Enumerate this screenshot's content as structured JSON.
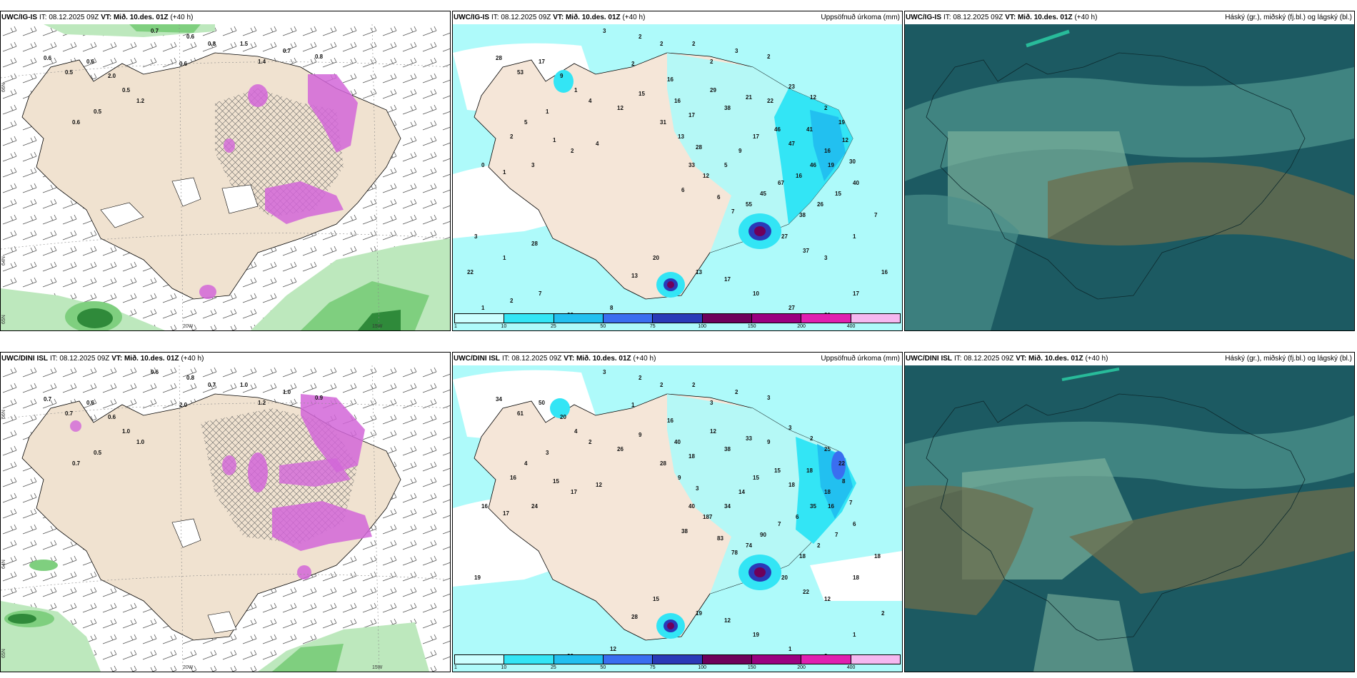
{
  "panels": [
    {
      "id": "ig-snow",
      "model": "UWC/IG-IS",
      "it_label": "IT:",
      "it_value": "08.12.2025 09Z",
      "vt_label": "VT:",
      "vt_value": "Mið. 10.des. 01Z",
      "lead": "(+40 h)",
      "right_title": "",
      "lat_labels": [
        "66N",
        "64N",
        "65N"
      ],
      "lon_labels": [
        "20W",
        "15W",
        "25W"
      ],
      "values": [
        "0.7",
        "0.6",
        "0.8",
        "1.5",
        "1.4",
        "0.7",
        "0.6",
        "0.8",
        "0.6",
        "0.5",
        "0.6",
        "2.0",
        "0.5",
        "1.2",
        "0.5",
        "0.6"
      ]
    },
    {
      "id": "ig-precip",
      "model": "UWC/IG-IS",
      "it_label": "IT:",
      "it_value": "08.12.2025 09Z",
      "vt_label": "VT:",
      "vt_value": "Mið. 10.des. 01Z",
      "lead": "(+40 h)",
      "right_title": "Uppsöfnuð úrkoma (mm)",
      "lat_labels": [
        "66N",
        "64N"
      ],
      "lon_labels": [],
      "values": [
        "3",
        "2",
        "2",
        "2",
        "2",
        "3",
        "2",
        "2",
        "28",
        "53",
        "17",
        "9",
        "1",
        "4",
        "1",
        "5",
        "2",
        "1",
        "2",
        "4",
        "0",
        "1",
        "3",
        "3",
        "12",
        "15",
        "16",
        "16",
        "17",
        "31",
        "13",
        "28",
        "29",
        "38",
        "21",
        "22",
        "23",
        "12",
        "2",
        "19",
        "12",
        "16",
        "46",
        "16",
        "67",
        "45",
        "55",
        "7",
        "6",
        "12",
        "33",
        "6",
        "5",
        "9",
        "17",
        "46",
        "47",
        "41",
        "19",
        "30",
        "40",
        "15",
        "26",
        "38",
        "27",
        "37",
        "3",
        "1",
        "7",
        "16",
        "17",
        "31",
        "27",
        "10",
        "17",
        "13",
        "20",
        "13",
        "8",
        "22",
        "7",
        "2",
        "1",
        "22",
        "1",
        "28"
      ],
      "colorbar_labels": [
        "1",
        "10",
        "25",
        "50",
        "75",
        "100",
        "150",
        "200",
        "400"
      ]
    },
    {
      "id": "ig-cloud",
      "model": "UWC/IG-IS",
      "it_label": "IT:",
      "it_value": "08.12.2025 09Z",
      "vt_label": "VT:",
      "vt_value": "Mið. 10.des. 01Z",
      "lead": "(+40 h)",
      "right_title": "Háský (gr.), miðský (fj.bl.) og lágský (bl.)",
      "values": []
    },
    {
      "id": "dini-snow",
      "model": "UWC/DINI ISL",
      "it_label": "IT:",
      "it_value": "08.12.2025 09Z",
      "vt_label": "VT:",
      "vt_value": "Mið. 10.des. 01Z",
      "lead": "(+40 h)",
      "right_title": "",
      "lat_labels": [
        "66N",
        "64N",
        "65N"
      ],
      "lon_labels": [
        "20W",
        "15W",
        "25W"
      ],
      "values": [
        "0.6",
        "0.8",
        "0.7",
        "1.0",
        "1.2",
        "1.0",
        "2.0",
        "0.9",
        "0.7",
        "0.7",
        "0.6",
        "0.6",
        "1.0",
        "1.0",
        "0.5",
        "0.7"
      ]
    },
    {
      "id": "dini-precip",
      "model": "UWC/DINI ISL",
      "it_label": "IT:",
      "it_value": "08.12.2025 09Z",
      "vt_label": "VT:",
      "vt_value": "Mið. 10.des. 01Z",
      "lead": "(+40 h)",
      "right_title": "Uppsöfnuð úrkoma (mm)",
      "lat_labels": [
        "66N",
        "64N"
      ],
      "lon_labels": [],
      "values": [
        "3",
        "2",
        "2",
        "2",
        "3",
        "2",
        "1",
        "3",
        "34",
        "61",
        "50",
        "20",
        "4",
        "2",
        "3",
        "4",
        "16",
        "15",
        "17",
        "12",
        "16",
        "17",
        "24",
        "19",
        "26",
        "9",
        "16",
        "40",
        "18",
        "28",
        "9",
        "3",
        "12",
        "38",
        "33",
        "9",
        "3",
        "2",
        "25",
        "22",
        "8",
        "18",
        "35",
        "6",
        "7",
        "90",
        "74",
        "78",
        "83",
        "187",
        "40",
        "38",
        "34",
        "14",
        "15",
        "15",
        "18",
        "18",
        "16",
        "7",
        "6",
        "7",
        "2",
        "18",
        "20",
        "22",
        "12",
        "18",
        "18",
        "2",
        "1",
        "2",
        "1",
        "19",
        "12",
        "19",
        "15",
        "28",
        "12",
        "20"
      ],
      "colorbar_labels": [
        "1",
        "10",
        "25",
        "50",
        "75",
        "100",
        "150",
        "200",
        "400"
      ]
    },
    {
      "id": "dini-cloud",
      "model": "UWC/DINI ISL",
      "it_label": "IT:",
      "it_value": "08.12.2025 09Z",
      "vt_label": "VT:",
      "vt_value": "Mið. 10.des. 01Z",
      "lead": "(+40 h)",
      "right_title": "Háský (gr.), miðský (fj.bl.) og lágský (bl.)",
      "values": []
    }
  ],
  "colorbar_colors": [
    "#ccffff",
    "#33e5f5",
    "#22c0f0",
    "#3a6ef0",
    "#2a3ab8",
    "#6e005a",
    "#9a0080",
    "#e020b0",
    "#f5b8f0"
  ],
  "colors": {
    "land": "#f0e2d0",
    "snow_green": "#7fcf7f",
    "snow_dark_green": "#2f8a3a",
    "snow_purple": "#d266d8",
    "precip_cyan": "#aefafa",
    "cloud_dark": "#1c5a62",
    "cloud_mid": "#4a8f8a",
    "cloud_low": "#7bb09b",
    "cloud_brown": "#6e6e4c"
  }
}
